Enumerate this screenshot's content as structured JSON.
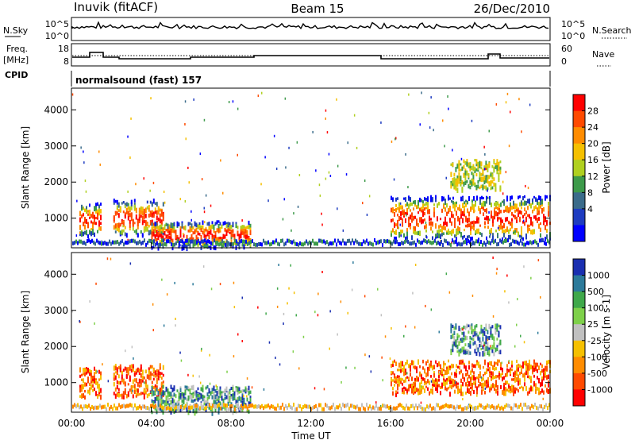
{
  "header": {
    "station": "Inuvik (fitACF)",
    "beam": "Beam 15",
    "date": "26/Dec/2010"
  },
  "noise_panel": {
    "left_label": "N.Sky",
    "right_label": "N.Search",
    "y_ticks_left": [
      "10^5",
      "10^0"
    ],
    "y_ticks_right": [
      "10^5",
      "10^0"
    ]
  },
  "freq_panel": {
    "left_label_1": "Freq.",
    "left_label_2": "[MHz]",
    "right_label": "Nave",
    "y_ticks_left": [
      "18",
      "8"
    ],
    "y_ticks_right": [
      "60",
      "0"
    ]
  },
  "cpid": {
    "label": "CPID",
    "text": "normalsound (fast) 157"
  },
  "chart_data": [
    {
      "type": "heatmap",
      "name": "Power",
      "ylabel": "Slant Range [km]",
      "yticks": [
        1000,
        2000,
        3000,
        4000
      ],
      "ylim": [
        180,
        4600
      ],
      "xlim_hours": [
        0,
        24
      ],
      "colorbar": {
        "label": "Power [dB]",
        "ticks": [
          "28",
          "24",
          "20",
          "16",
          "12",
          "8",
          "4"
        ],
        "colors": [
          "#ff0000",
          "#ff4a00",
          "#ff8c00",
          "#f5c000",
          "#b0d020",
          "#3d9a4a",
          "#3a6b8a",
          "#1e3cc0",
          "#0000ff"
        ]
      },
      "regions": [
        {
          "t0": 0.4,
          "t1": 1.5,
          "r0": 500,
          "r1": 1400,
          "level": "high"
        },
        {
          "t0": 2.1,
          "t1": 4.6,
          "r0": 500,
          "r1": 1500,
          "level": "high"
        },
        {
          "t0": 4.0,
          "t1": 9.0,
          "r0": 180,
          "r1": 900,
          "level": "high"
        },
        {
          "t0": 16.0,
          "t1": 24.0,
          "r0": 400,
          "r1": 1600,
          "level": "high"
        },
        {
          "t0": 19.0,
          "t1": 21.5,
          "r0": 1800,
          "r1": 2600,
          "level": "mid"
        }
      ]
    },
    {
      "type": "heatmap",
      "name": "Velocity",
      "ylabel": "Slant Range [km]",
      "yticks": [
        1000,
        2000,
        3000,
        4000
      ],
      "ylim": [
        180,
        4600
      ],
      "xlim_hours": [
        0,
        24
      ],
      "colorbar": {
        "label": "Velocity [m s-1]",
        "ticks": [
          "1000",
          "500",
          "100",
          "25",
          "-25",
          "-100",
          "-500",
          "-1000"
        ],
        "colors": [
          "#1a2fb0",
          "#2c7a9a",
          "#3fa84a",
          "#7ed04a",
          "#c0c0c0",
          "#f5c000",
          "#ff8c00",
          "#ff4a00",
          "#ff0000"
        ]
      },
      "regions": [
        {
          "t0": 0.4,
          "t1": 1.5,
          "r0": 600,
          "r1": 1400,
          "level": "neg"
        },
        {
          "t0": 2.1,
          "t1": 4.6,
          "r0": 600,
          "r1": 1500,
          "level": "neg"
        },
        {
          "t0": 4.0,
          "t1": 9.0,
          "r0": 180,
          "r1": 900,
          "level": "pos"
        },
        {
          "t0": 16.0,
          "t1": 24.0,
          "r0": 700,
          "r1": 1600,
          "level": "neg"
        },
        {
          "t0": 19.0,
          "t1": 21.5,
          "r0": 1800,
          "r1": 2600,
          "level": "pos"
        }
      ]
    }
  ],
  "x_axis": {
    "label": "Time UT",
    "ticks": [
      "00:00",
      "04:00",
      "08:00",
      "12:00",
      "16:00",
      "20:00",
      "00:00"
    ]
  }
}
